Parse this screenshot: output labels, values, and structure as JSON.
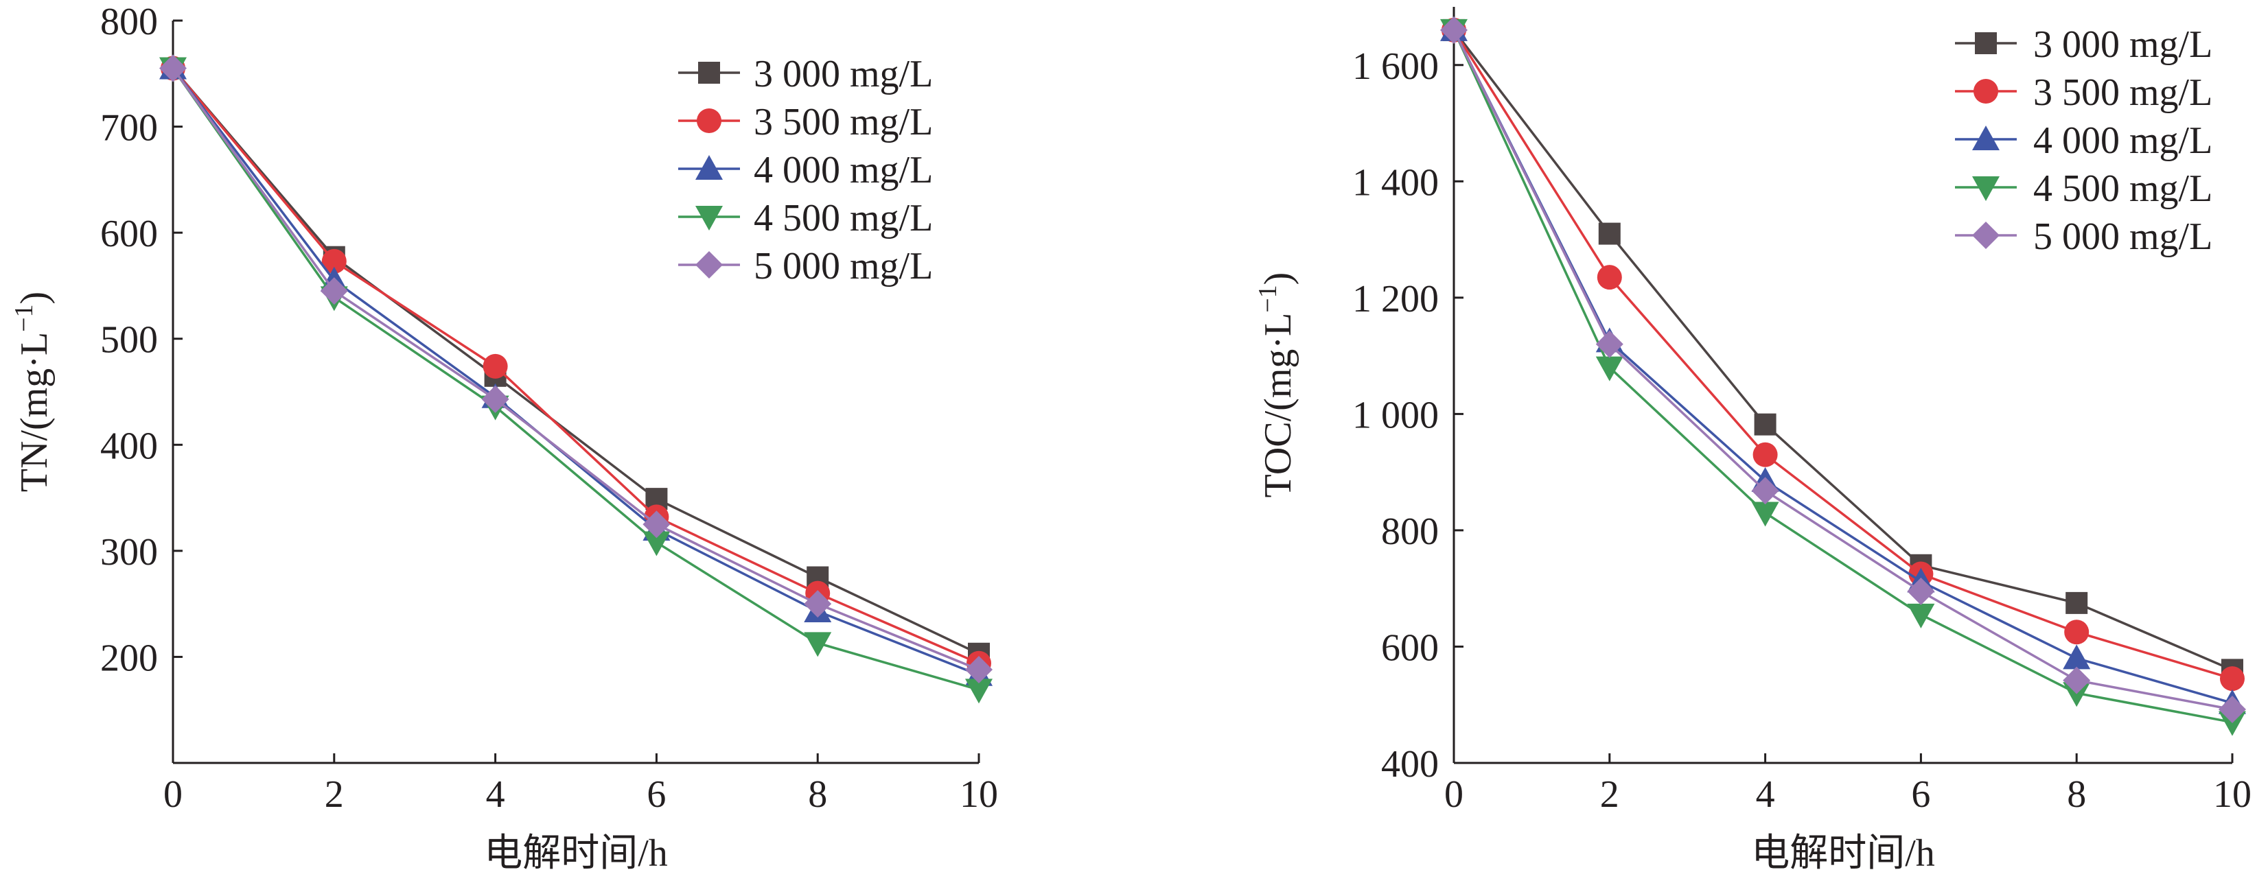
{
  "chart_data": [
    {
      "type": "line",
      "xlabel": "电解时间/h",
      "ylabel_main": "TN/(mg·L",
      "ylabel_sup": "−1",
      "ylabel_close": ")",
      "xlim": [
        0,
        10
      ],
      "ylim": [
        100,
        800
      ],
      "xticks": [
        "0",
        "2",
        "4",
        "6",
        "8",
        "10"
      ],
      "yticks": [
        "200",
        "300",
        "400",
        "500",
        "600",
        "700",
        "800"
      ],
      "grid": false,
      "legend_position": "top-right",
      "x": [
        0,
        2,
        4,
        6,
        8,
        10
      ],
      "series": [
        {
          "name": "3 000 mg/L",
          "color": "#4d4545",
          "marker": "square",
          "values": [
            755,
            577,
            465,
            349,
            275,
            203
          ]
        },
        {
          "name": "3 500 mg/L",
          "color": "#e0393e",
          "marker": "circle",
          "values": [
            755,
            573,
            474,
            332,
            260,
            194
          ]
        },
        {
          "name": "4 000 mg/L",
          "color": "#3f56a6",
          "marker": "triangle-up",
          "values": [
            755,
            555,
            445,
            320,
            243,
            183
          ]
        },
        {
          "name": "4 500 mg/L",
          "color": "#3f9b57",
          "marker": "triangle-down",
          "values": [
            755,
            539,
            436,
            308,
            213,
            169
          ]
        },
        {
          "name": "5 000 mg/L",
          "color": "#9a78b4",
          "marker": "diamond",
          "values": [
            755,
            545,
            443,
            325,
            250,
            188
          ]
        }
      ]
    },
    {
      "type": "line",
      "xlabel": "电解时间/h",
      "ylabel_main": "TOC/(mg·L",
      "ylabel_sup": "−1",
      "ylabel_close": ")",
      "xlim": [
        0,
        10
      ],
      "ylim": [
        400,
        1700
      ],
      "xticks": [
        "0",
        "2",
        "4",
        "6",
        "8",
        "10"
      ],
      "yticks": [
        "400",
        "600",
        "800",
        "1 000",
        "1 200",
        "1 400",
        "1 600"
      ],
      "grid": false,
      "legend_position": "top-right",
      "x": [
        0,
        2,
        4,
        6,
        8,
        10
      ],
      "series": [
        {
          "name": "3 000 mg/L",
          "color": "#4d4545",
          "marker": "square",
          "values": [
            1660,
            1310,
            982,
            740,
            675,
            560
          ]
        },
        {
          "name": "3 500 mg/L",
          "color": "#e0393e",
          "marker": "circle",
          "values": [
            1660,
            1235,
            930,
            725,
            625,
            545
          ]
        },
        {
          "name": "4 000 mg/L",
          "color": "#3f56a6",
          "marker": "triangle-up",
          "values": [
            1660,
            1125,
            885,
            712,
            580,
            503
          ]
        },
        {
          "name": "4 500 mg/L",
          "color": "#3f9b57",
          "marker": "triangle-down",
          "values": [
            1660,
            1080,
            830,
            655,
            520,
            470
          ]
        },
        {
          "name": "5 000 mg/L",
          "color": "#9a78b4",
          "marker": "diamond",
          "values": [
            1660,
            1120,
            868,
            695,
            542,
            492
          ]
        }
      ]
    }
  ]
}
